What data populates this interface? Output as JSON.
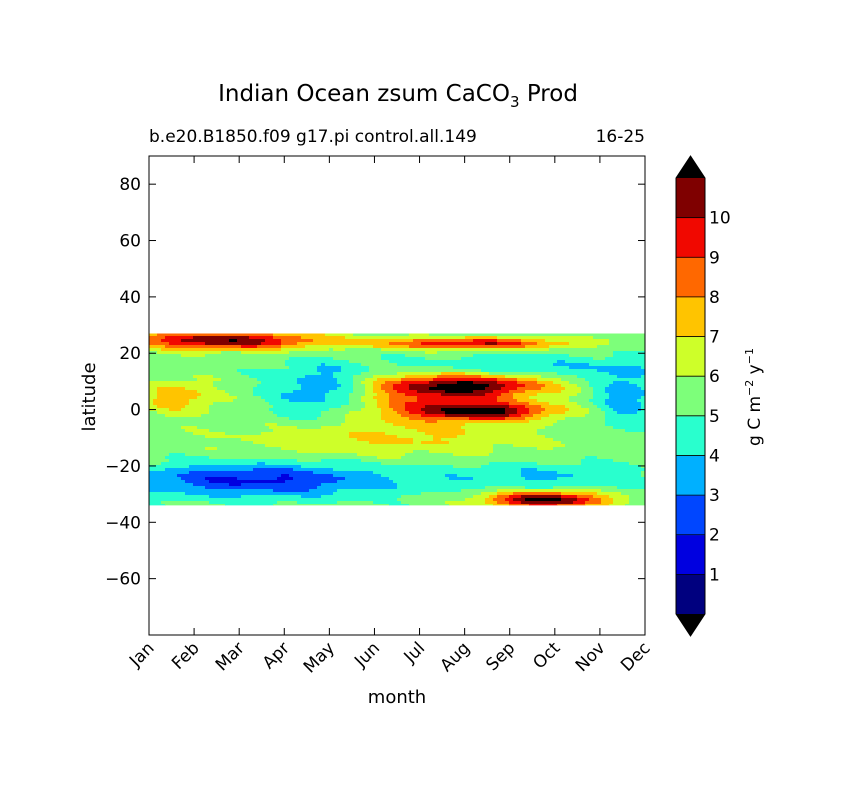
{
  "chart_data": {
    "type": "heatmap",
    "title": "Indian Ocean zsum CaCO",
    "title_subscript": "3",
    "title_suffix": " Prod",
    "subtitle_left": "b.e20.B1850.f09 g17.pi control.all.149",
    "subtitle_right": "16-25",
    "xlabel": "month",
    "ylabel": "latitude",
    "x_categories": [
      "Jan",
      "Feb",
      "Mar",
      "Apr",
      "May",
      "Jun",
      "Jul",
      "Aug",
      "Sep",
      "Oct",
      "Nov",
      "Dec"
    ],
    "y_ticks": [
      80,
      60,
      40,
      20,
      0,
      -20,
      -40,
      -60
    ],
    "y_tick_labels": [
      "80",
      "60",
      "40",
      "20",
      "0",
      "−20",
      "−40",
      "−60"
    ],
    "ylim": [
      -80,
      90
    ],
    "data_lat_range": [
      -34,
      27
    ],
    "colorbar": {
      "label": "g C m",
      "label_exp1": "−2",
      "label_mid": " y",
      "label_exp2": "−1",
      "levels": [
        0,
        1,
        2,
        3,
        4,
        5,
        6,
        7,
        8,
        9,
        10,
        11
      ],
      "tick_labels": [
        "1",
        "2",
        "3",
        "4",
        "5",
        "6",
        "7",
        "8",
        "9",
        "10"
      ],
      "colors": [
        "#00007f",
        "#0000e0",
        "#0046ff",
        "#00b0ff",
        "#29ffce",
        "#7dff7a",
        "#ceff29",
        "#ffc400",
        "#ff6800",
        "#f10800",
        "#7f0000"
      ],
      "extend_low_color": "#000000",
      "extend_high_color": "#000000"
    },
    "grid": false
  }
}
